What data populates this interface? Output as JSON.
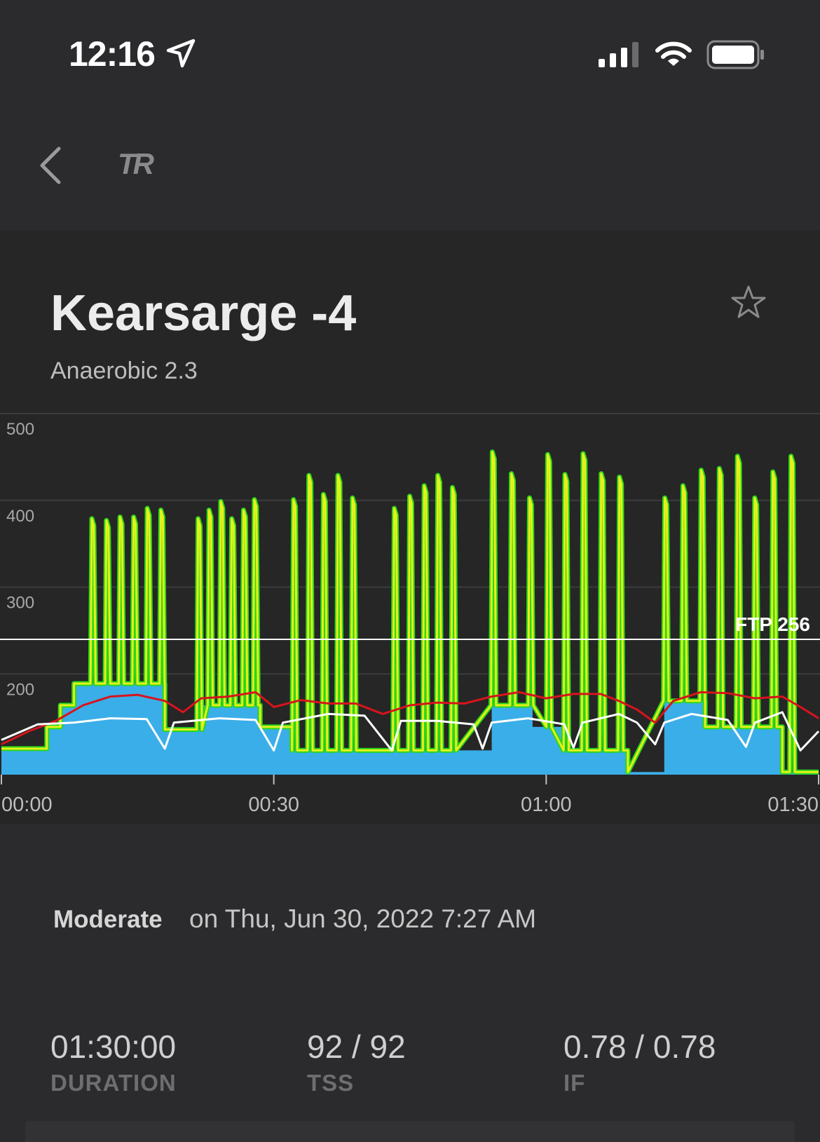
{
  "status_bar": {
    "time": "12:16"
  },
  "nav": {
    "logo_text": "TR"
  },
  "workout": {
    "title": "Kearsarge -4",
    "subtitle": "Anaerobic 2.3",
    "difficulty": "Moderate",
    "date_text": "on Thu, Jun 30, 2022 7:27 AM"
  },
  "stats": [
    {
      "value": "01:30:00",
      "label": "DURATION"
    },
    {
      "value": "92 / 92",
      "label": "TSS"
    },
    {
      "value": "0.78 / 0.78",
      "label": "IF"
    }
  ],
  "colors": {
    "target_fill": "#3aaee8",
    "power_line": "#e6f01c",
    "power_edge": "#29d81a",
    "heart_rate": "#d8141c",
    "cadence": "#ffffff",
    "ftp_line": "#ffffff"
  },
  "chart_data": {
    "type": "line",
    "x_range_min": [
      0,
      90
    ],
    "y_range": [
      100,
      500
    ],
    "y_ticks": [
      200,
      300,
      400,
      500
    ],
    "y_tick_labels": [
      "200",
      "300",
      "400",
      "500"
    ],
    "x_ticks": [
      0,
      30,
      60,
      90
    ],
    "x_tick_labels": [
      "00:00",
      "00:30",
      "01:00",
      "01:30"
    ],
    "ftp": 256,
    "ftp_label": "FTP 256",
    "target_power": [
      [
        0,
        130
      ],
      [
        5,
        130
      ],
      [
        5,
        155
      ],
      [
        6.5,
        155
      ],
      [
        6.5,
        180
      ],
      [
        8,
        180
      ],
      [
        8,
        205
      ],
      [
        18,
        205
      ],
      [
        18,
        152
      ],
      [
        22,
        152
      ],
      [
        22,
        180
      ],
      [
        28.5,
        180
      ],
      [
        28.5,
        155
      ],
      [
        32,
        155
      ],
      [
        32,
        128
      ],
      [
        54,
        128
      ],
      [
        54,
        180
      ],
      [
        58.5,
        180
      ],
      [
        58.5,
        155
      ],
      [
        62,
        155
      ],
      [
        62,
        128
      ],
      [
        69,
        128
      ],
      [
        69,
        103
      ],
      [
        73,
        103
      ],
      [
        73,
        185
      ],
      [
        77.5,
        185
      ],
      [
        77.5,
        155
      ],
      [
        86,
        155
      ],
      [
        86,
        103
      ],
      [
        90,
        103
      ]
    ],
    "sprints_pwr": [
      {
        "t": 10.1,
        "p": 395
      },
      {
        "t": 11.7,
        "p": 393
      },
      {
        "t": 13.2,
        "p": 397
      },
      {
        "t": 14.7,
        "p": 397
      },
      {
        "t": 16.2,
        "p": 407
      },
      {
        "t": 17.7,
        "p": 405
      },
      {
        "t": 21.8,
        "p": 395
      },
      {
        "t": 23.0,
        "p": 405
      },
      {
        "t": 24.3,
        "p": 415
      },
      {
        "t": 25.5,
        "p": 395
      },
      {
        "t": 26.8,
        "p": 405
      },
      {
        "t": 28.0,
        "p": 417
      },
      {
        "t": 32.3,
        "p": 417
      },
      {
        "t": 34.0,
        "p": 445
      },
      {
        "t": 35.6,
        "p": 423
      },
      {
        "t": 37.2,
        "p": 445
      },
      {
        "t": 38.8,
        "p": 419
      },
      {
        "t": 43.4,
        "p": 407
      },
      {
        "t": 45.1,
        "p": 421
      },
      {
        "t": 46.7,
        "p": 433
      },
      {
        "t": 48.2,
        "p": 445
      },
      {
        "t": 49.8,
        "p": 431
      },
      {
        "t": 54.2,
        "p": 472
      },
      {
        "t": 56.3,
        "p": 447
      },
      {
        "t": 58.3,
        "p": 419
      },
      {
        "t": 60.3,
        "p": 469
      },
      {
        "t": 62.2,
        "p": 446
      },
      {
        "t": 64.2,
        "p": 470
      },
      {
        "t": 66.2,
        "p": 447
      },
      {
        "t": 68.2,
        "p": 443
      },
      {
        "t": 73.2,
        "p": 419
      },
      {
        "t": 75.2,
        "p": 433
      },
      {
        "t": 77.2,
        "p": 451
      },
      {
        "t": 79.2,
        "p": 453
      },
      {
        "t": 81.2,
        "p": 467
      },
      {
        "t": 83.1,
        "p": 419
      },
      {
        "t": 85.1,
        "p": 449
      },
      {
        "t": 87.1,
        "p": 467
      }
    ],
    "heart_rate": [
      [
        0,
        135
      ],
      [
        3,
        150
      ],
      [
        6,
        162
      ],
      [
        9,
        180
      ],
      [
        12,
        190
      ],
      [
        15,
        192
      ],
      [
        18,
        185
      ],
      [
        20,
        172
      ],
      [
        22,
        188
      ],
      [
        25,
        190
      ],
      [
        28,
        195
      ],
      [
        30,
        178
      ],
      [
        33,
        186
      ],
      [
        36,
        182
      ],
      [
        39,
        182
      ],
      [
        42,
        170
      ],
      [
        45,
        180
      ],
      [
        48,
        183
      ],
      [
        51,
        182
      ],
      [
        54,
        190
      ],
      [
        57,
        195
      ],
      [
        60,
        188
      ],
      [
        63,
        193
      ],
      [
        66,
        193
      ],
      [
        68,
        185
      ],
      [
        70,
        175
      ],
      [
        72,
        160
      ],
      [
        74,
        185
      ],
      [
        77,
        195
      ],
      [
        80,
        194
      ],
      [
        83,
        188
      ],
      [
        86,
        190
      ],
      [
        88,
        178
      ],
      [
        90,
        165
      ]
    ],
    "cadence": [
      [
        0,
        140
      ],
      [
        4,
        158
      ],
      [
        8,
        160
      ],
      [
        12,
        165
      ],
      [
        16,
        164
      ],
      [
        18,
        130
      ],
      [
        19,
        160
      ],
      [
        24,
        165
      ],
      [
        28,
        163
      ],
      [
        30,
        128
      ],
      [
        31,
        160
      ],
      [
        36,
        170
      ],
      [
        40,
        168
      ],
      [
        43,
        128
      ],
      [
        44,
        162
      ],
      [
        48,
        162
      ],
      [
        52,
        158
      ],
      [
        53,
        130
      ],
      [
        54,
        160
      ],
      [
        58,
        165
      ],
      [
        62,
        158
      ],
      [
        63,
        131
      ],
      [
        64,
        160
      ],
      [
        68,
        170
      ],
      [
        70,
        160
      ],
      [
        72,
        135
      ],
      [
        73,
        160
      ],
      [
        76,
        170
      ],
      [
        80,
        163
      ],
      [
        82,
        132
      ],
      [
        83,
        160
      ],
      [
        86,
        172
      ],
      [
        88,
        128
      ],
      [
        90,
        150
      ]
    ]
  }
}
